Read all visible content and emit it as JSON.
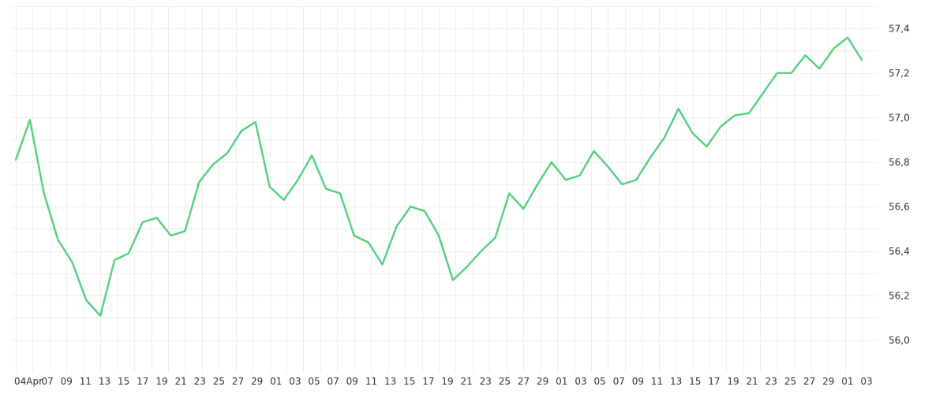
{
  "chart_data": {
    "type": "line",
    "title": "",
    "xlabel": "",
    "ylabel": "",
    "grid": true,
    "ylim": [
      55.9,
      57.5
    ],
    "y_ticks": [
      "56,0",
      "56,2",
      "56,4",
      "56,6",
      "56,8",
      "57,0",
      "57,2",
      "57,4"
    ],
    "y_tick_values": [
      56.0,
      56.2,
      56.4,
      56.6,
      56.8,
      57.0,
      57.2,
      57.4
    ],
    "x_tick_labels": [
      "04Apr",
      "07",
      "09",
      "11",
      "13",
      "15",
      "17",
      "19",
      "21",
      "23",
      "25",
      "27",
      "29",
      "01",
      "03",
      "05",
      "07",
      "09",
      "11",
      "13",
      "15",
      "17",
      "19",
      "21",
      "23",
      "25",
      "27",
      "29",
      "01",
      "03",
      "05",
      "07",
      "09",
      "11",
      "13",
      "15",
      "17",
      "19",
      "21",
      "23",
      "25",
      "27",
      "29",
      "01",
      "03"
    ],
    "series": [
      {
        "color": "#52d17c",
        "values": [
          56.81,
          56.99,
          56.66,
          56.45,
          56.35,
          56.18,
          56.11,
          56.36,
          56.39,
          56.53,
          56.55,
          56.47,
          56.49,
          56.71,
          56.79,
          56.84,
          56.94,
          56.98,
          56.69,
          56.63,
          56.72,
          56.83,
          56.68,
          56.66,
          56.47,
          56.44,
          56.34,
          56.51,
          56.6,
          56.58,
          56.47,
          56.27,
          56.33,
          56.4,
          56.46,
          56.66,
          56.59,
          56.7,
          56.8,
          56.72,
          56.74,
          56.85,
          56.78,
          56.7,
          56.72,
          56.82,
          56.91,
          57.04,
          56.93,
          56.87,
          56.96,
          57.01,
          57.02,
          57.11,
          57.2,
          57.2,
          57.28,
          57.22,
          57.31,
          57.36,
          57.26
        ]
      }
    ]
  }
}
